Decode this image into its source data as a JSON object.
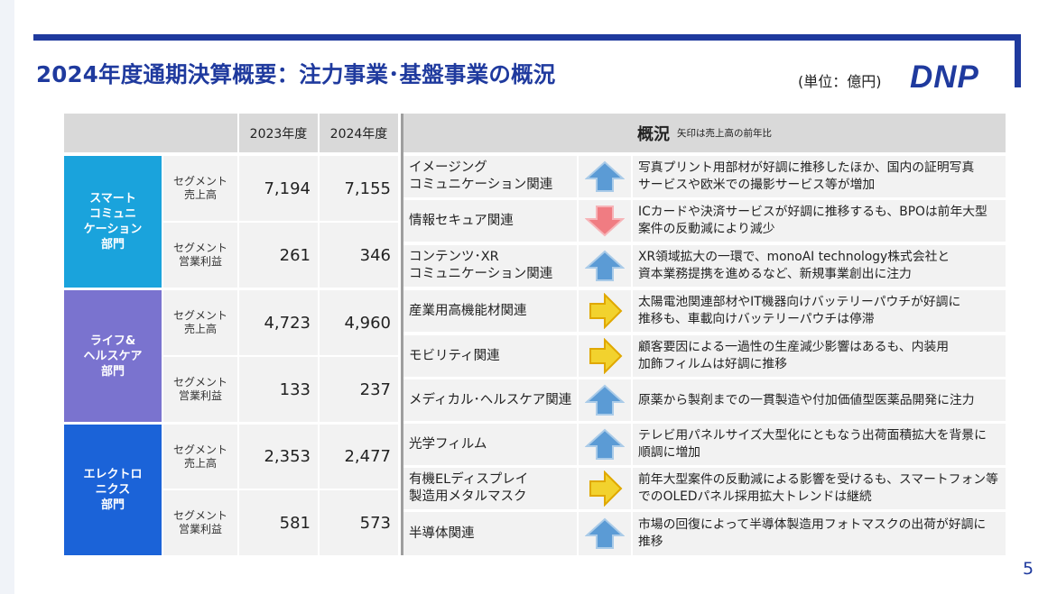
{
  "header": {
    "title": "2024年度通期決算概要：注力事業･基盤事業の概況",
    "unit": "(単位：億円)",
    "logo": "DNP"
  },
  "table_left": {
    "col_2023": "2023年度",
    "col_2024": "2024年度",
    "segments": [
      {
        "name": "スマート\nコミュニ\nケーション\n部門",
        "color": "#1aa3dc",
        "sales_label": "セグメント\n売上高",
        "sales_2023": "7,194",
        "sales_2024": "7,155",
        "profit_label": "セグメント\n営業利益",
        "profit_2023": "261",
        "profit_2024": "346"
      },
      {
        "name": "ライフ&\nヘルスケア\n部門",
        "color": "#7a73cf",
        "sales_label": "セグメント\n売上高",
        "sales_2023": "4,723",
        "sales_2024": "4,960",
        "profit_label": "セグメント\n営業利益",
        "profit_2023": "133",
        "profit_2024": "237"
      },
      {
        "name": "エレクトロ\nニクス\n部門",
        "color": "#1b63d8",
        "sales_label": "セグメント\n売上高",
        "sales_2023": "2,353",
        "sales_2024": "2,477",
        "profit_label": "セグメント\n営業利益",
        "profit_2023": "581",
        "profit_2024": "573"
      }
    ]
  },
  "table_right": {
    "header_title": "概況",
    "header_note": "矢印は売上高の前年比",
    "rows": [
      {
        "name": "イメージング\nコミュニケーション関連",
        "arrow": "up-arrow-icon",
        "desc": "写真プリント用部材が好調に推移したほか、国内の証明写真\nサービスや欧米での撮影サービス等が増加"
      },
      {
        "name": "情報セキュア関連",
        "arrow": "down-arrow-icon",
        "desc": "ICカードや決済サービスが好調に推移するも、BPOは前年大型\n案件の反動減により減少"
      },
      {
        "name": "コンテンツ･XR\nコミュニケーション関連",
        "arrow": "up-arrow-icon",
        "desc": "XR領域拡大の一環で、monoAI technology株式会社と\n資本業務提携を進めるなど、新規事業創出に注力"
      },
      {
        "name": "産業用高機能材関連",
        "arrow": "right-arrow-icon",
        "desc": "太陽電池関連部材やIT機器向けバッテリーパウチが好調に\n推移も、車載向けバッテリーパウチは停滞"
      },
      {
        "name": "モビリティ関連",
        "arrow": "right-arrow-icon",
        "desc": "顧客要因による一過性の生産減少影響はあるも、内装用\n加飾フィルムは好調に推移"
      },
      {
        "name": "メディカル･ヘルスケア関連",
        "arrow": "up-arrow-icon",
        "desc": "原薬から製剤までの一貫製造や付加価値型医薬品開発に注力"
      },
      {
        "name": "光学フィルム",
        "arrow": "up-arrow-icon",
        "desc": "テレビ用パネルサイズ大型化にともなう出荷面積拡大を背景に\n順調に増加"
      },
      {
        "name": "有機ELディスプレイ\n製造用メタルマスク",
        "arrow": "right-arrow-icon",
        "desc": "前年大型案件の反動減による影響を受けるも、スマートフォン等\nでのOLEDパネル採用拡大トレンドは継続"
      },
      {
        "name": "半導体関連",
        "arrow": "up-arrow-icon",
        "desc": "市場の回復によって半導体製造用フォトマスクの出荷が好調に\n推移"
      }
    ]
  },
  "colors": {
    "brand": "#1f3a9e",
    "arrow_up": "#5b9bd5",
    "arrow_down": "#f07c82",
    "arrow_flat": "#f2d22e"
  },
  "page": {
    "number": "5"
  }
}
